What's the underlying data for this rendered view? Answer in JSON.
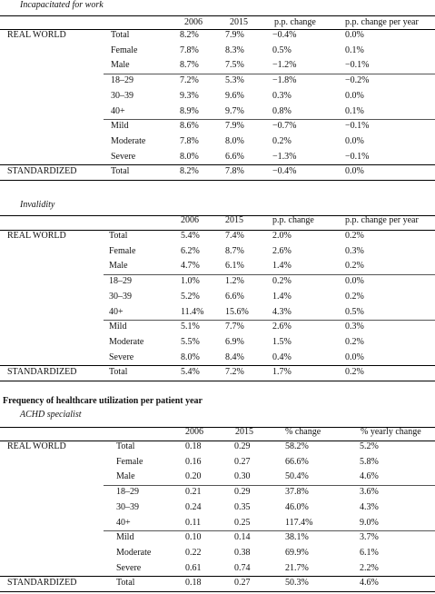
{
  "tables": [
    {
      "title": "Incapacitated for work",
      "headers": [
        "2006",
        "2015",
        "p.p. change",
        "p.p. change per year"
      ],
      "groups": [
        "REAL WORLD",
        "STANDARDIZED"
      ],
      "rows": [
        {
          "group": "REAL WORLD",
          "label": "Total",
          "v": [
            "8.2%",
            "7.9%",
            "−0.4%",
            "0.0%"
          ]
        },
        {
          "group": "",
          "label": "Female",
          "v": [
            "7.8%",
            "8.3%",
            "0.5%",
            "0.1%"
          ]
        },
        {
          "group": "",
          "label": "Male",
          "v": [
            "8.7%",
            "7.5%",
            "−1.2%",
            "−0.1%"
          ]
        },
        {
          "group": "",
          "label": "18–29",
          "v": [
            "7.2%",
            "5.3%",
            "−1.8%",
            "−0.2%"
          ]
        },
        {
          "group": "",
          "label": "30–39",
          "v": [
            "9.3%",
            "9.6%",
            "0.3%",
            "0.0%"
          ]
        },
        {
          "group": "",
          "label": "40+",
          "v": [
            "8.9%",
            "9.7%",
            "0.8%",
            "0.1%"
          ]
        },
        {
          "group": "",
          "label": "Mild",
          "v": [
            "8.6%",
            "7.9%",
            "−0.7%",
            "−0.1%"
          ]
        },
        {
          "group": "",
          "label": "Moderate",
          "v": [
            "7.8%",
            "8.0%",
            "0.2%",
            "0.0%"
          ]
        },
        {
          "group": "",
          "label": "Severe",
          "v": [
            "8.0%",
            "6.6%",
            "−1.3%",
            "−0.1%"
          ]
        },
        {
          "group": "STANDARDIZED",
          "label": "Total",
          "v": [
            "8.2%",
            "7.8%",
            "−0.4%",
            "0.0%"
          ]
        }
      ]
    },
    {
      "title": "Invalidity",
      "headers": [
        "2006",
        "2015",
        "p.p. change",
        "p.p. change per year"
      ],
      "rows": [
        {
          "group": "REAL WORLD",
          "label": "Total",
          "v": [
            "5.4%",
            "7.4%",
            "2.0%",
            "0.2%"
          ]
        },
        {
          "group": "",
          "label": "Female",
          "v": [
            "6.2%",
            "8.7%",
            "2.6%",
            "0.3%"
          ]
        },
        {
          "group": "",
          "label": "Male",
          "v": [
            "4.7%",
            "6.1%",
            "1.4%",
            "0.2%"
          ]
        },
        {
          "group": "",
          "label": "18–29",
          "v": [
            "1.0%",
            "1.2%",
            "0.2%",
            "0.0%"
          ]
        },
        {
          "group": "",
          "label": "30–39",
          "v": [
            "5.2%",
            "6.6%",
            "1.4%",
            "0.2%"
          ]
        },
        {
          "group": "",
          "label": "40+",
          "v": [
            "11.4%",
            "15.6%",
            "4.3%",
            "0.5%"
          ]
        },
        {
          "group": "",
          "label": "Mild",
          "v": [
            "5.1%",
            "7.7%",
            "2.6%",
            "0.3%"
          ]
        },
        {
          "group": "",
          "label": "Moderate",
          "v": [
            "5.5%",
            "6.9%",
            "1.5%",
            "0.2%"
          ]
        },
        {
          "group": "",
          "label": "Severe",
          "v": [
            "8.0%",
            "8.4%",
            "0.4%",
            "0.0%"
          ]
        },
        {
          "group": "STANDARDIZED",
          "label": "Total",
          "v": [
            "5.4%",
            "7.2%",
            "1.7%",
            "0.2%"
          ]
        }
      ]
    },
    {
      "heading": "Frequency of healthcare utilization per patient year",
      "title": "ACHD specialist",
      "headers": [
        "2006",
        "2015",
        "% change",
        "% yearly change"
      ],
      "rows": [
        {
          "group": "REAL WORLD",
          "label": "Total",
          "v": [
            "0.18",
            "0.29",
            "58.2%",
            "5.2%"
          ]
        },
        {
          "group": "",
          "label": "Female",
          "v": [
            "0.16",
            "0.27",
            "66.6%",
            "5.8%"
          ]
        },
        {
          "group": "",
          "label": "Male",
          "v": [
            "0.20",
            "0.30",
            "50.4%",
            "4.6%"
          ]
        },
        {
          "group": "",
          "label": "18–29",
          "v": [
            "0.21",
            "0.29",
            "37.8%",
            "3.6%"
          ]
        },
        {
          "group": "",
          "label": "30–39",
          "v": [
            "0.24",
            "0.35",
            "46.0%",
            "4.3%"
          ]
        },
        {
          "group": "",
          "label": "40+",
          "v": [
            "0.11",
            "0.25",
            "117.4%",
            "9.0%"
          ]
        },
        {
          "group": "",
          "label": "Mild",
          "v": [
            "0.10",
            "0.14",
            "38.1%",
            "3.7%"
          ]
        },
        {
          "group": "",
          "label": "Moderate",
          "v": [
            "0.22",
            "0.38",
            "69.9%",
            "6.1%"
          ]
        },
        {
          "group": "",
          "label": "Severe",
          "v": [
            "0.61",
            "0.74",
            "21.7%",
            "2.2%"
          ]
        },
        {
          "group": "STANDARDIZED",
          "label": "Total",
          "v": [
            "0.18",
            "0.27",
            "50.3%",
            "4.6%"
          ]
        }
      ]
    }
  ]
}
